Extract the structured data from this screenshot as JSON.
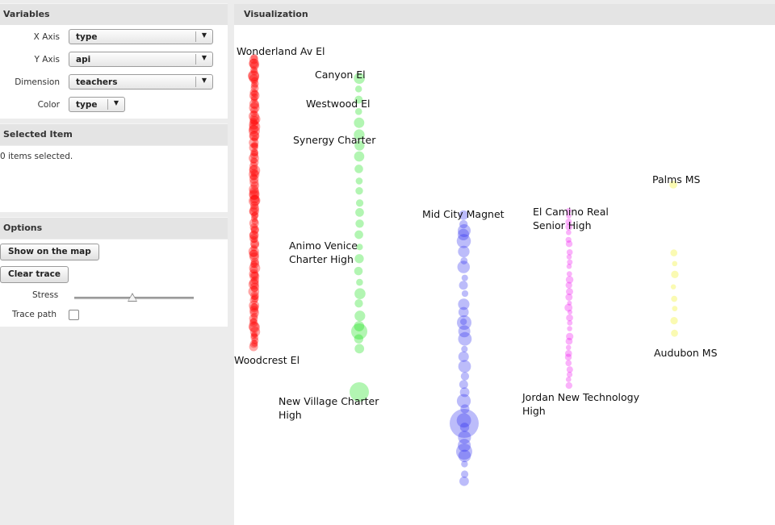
{
  "sidebar": {
    "variables": {
      "title": "Variables",
      "fields": [
        {
          "label": "X Axis",
          "value": "type"
        },
        {
          "label": "Y Axis",
          "value": "api"
        },
        {
          "label": "Dimension",
          "value": "teachers"
        },
        {
          "label": "Color",
          "value": "type"
        }
      ]
    },
    "selected": {
      "title": "Selected Item",
      "status": "0 items selected."
    },
    "options": {
      "title": "Options",
      "show_map_label": "Show on the map",
      "clear_trace_label": "Clear trace",
      "stress_label": "Stress",
      "stress_value": 0.5,
      "trace_label": "Trace path",
      "trace_checked": false
    }
  },
  "visualization": {
    "title": "Visualization",
    "colors": {
      "elementary": "#ff0000",
      "charter": "#00dd00",
      "middle_city": "#2222ee",
      "high": "#ee00ee",
      "ms": "#eeee00"
    },
    "labels": [
      "Wonderland Av El",
      "Woodcrest El",
      "Canyon El",
      "Westwood El",
      "Synergy Charter",
      "Animo Venice",
      "Charter High",
      "New Village Charter",
      "High",
      "Mid City Magnet",
      "El Camino Real",
      "Senior High",
      "Jordan New Technology",
      "High",
      "Palms MS",
      "Audubon MS"
    ]
  }
}
